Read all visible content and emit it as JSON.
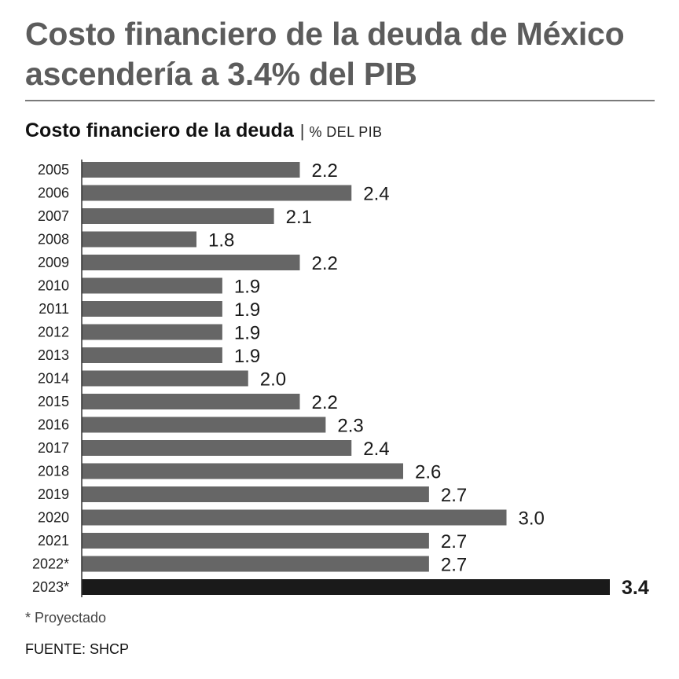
{
  "headline": "Costo financiero de la deuda de México ascendería a 3.4% del PIB",
  "subtitle": {
    "main": "Costo financiero de la deuda",
    "separator": "|",
    "unit": "% DEL PIB"
  },
  "chart_data": {
    "type": "bar",
    "orientation": "horizontal",
    "title": "Costo financiero de la deuda",
    "ylabel": "% DEL PIB",
    "categories": [
      "2005",
      "2006",
      "2007",
      "2008",
      "2009",
      "2010",
      "2011",
      "2012",
      "2013",
      "2014",
      "2015",
      "2016",
      "2017",
      "2018",
      "2019",
      "2020",
      "2021",
      "2022*",
      "2023*"
    ],
    "values": [
      2.2,
      2.4,
      2.1,
      1.8,
      2.2,
      1.9,
      1.9,
      1.9,
      1.9,
      2.0,
      2.2,
      2.3,
      2.4,
      2.6,
      2.7,
      3.0,
      2.7,
      2.7,
      3.4
    ],
    "value_labels": [
      "2.2",
      "2.4",
      "2.1",
      "1.8",
      "2.2",
      "1.9",
      "1.9",
      "1.9",
      "1.9",
      "2.0",
      "2.2",
      "2.3",
      "2.4",
      "2.6",
      "2.7",
      "3.0",
      "2.7",
      "2.7",
      "3.4"
    ],
    "highlight_index": 18,
    "colors": {
      "bar": "#666666",
      "highlight": "#1a1a1a",
      "axis": "#333333"
    }
  },
  "footnote": "* Proyectado",
  "source": "FUENTE: SHCP"
}
